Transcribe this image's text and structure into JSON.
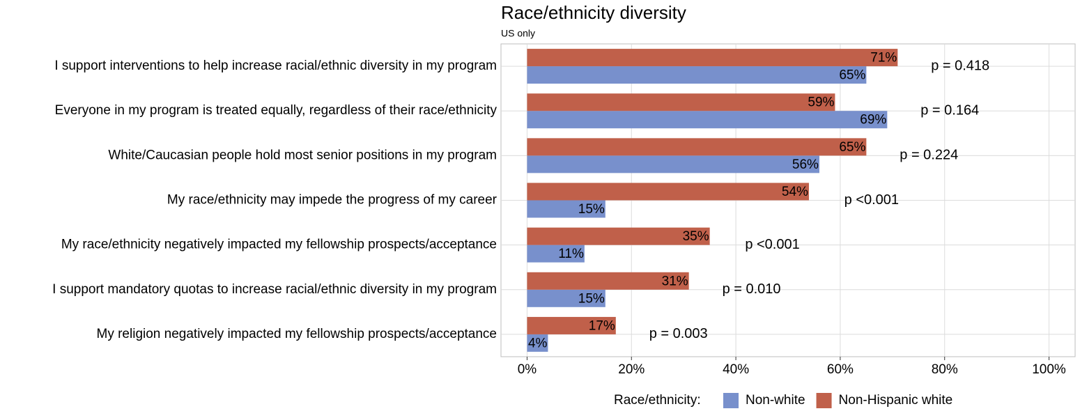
{
  "chart_data": {
    "type": "bar",
    "orientation": "horizontal",
    "title": "Race/ethnicity diversity",
    "subtitle": "US only",
    "categories": [
      "I support interventions to help increase racial/ethnic diversity in my program",
      "Everyone in my program is treated equally, regardless of their race/ethnicity",
      "White/Caucasian people hold most senior positions in my program",
      "My race/ethnicity may impede the progress of my career",
      "My race/ethnicity negatively impacted my fellowship prospects/acceptance",
      "I support mandatory quotas to increase racial/ethnic diversity in my program",
      "My religion negatively impacted my fellowship prospects/acceptance"
    ],
    "series": [
      {
        "name": "Non-white",
        "color": "#7890cc",
        "values": [
          65,
          69,
          56,
          15,
          11,
          15,
          4
        ],
        "value_labels": [
          "65%",
          "69%",
          "56%",
          "15%",
          "11%",
          "15%",
          "4%"
        ]
      },
      {
        "name": "Non-Hispanic white",
        "color": "#c0604a",
        "values": [
          71,
          59,
          65,
          54,
          35,
          31,
          17
        ],
        "value_labels": [
          "71%",
          "59%",
          "65%",
          "54%",
          "35%",
          "31%",
          "17%"
        ]
      }
    ],
    "annotations": [
      {
        "text": "p = 0.418",
        "color": "#000000"
      },
      {
        "text": "p = 0.164",
        "color": "#000000"
      },
      {
        "text": "p = 0.224",
        "color": "#000000"
      },
      {
        "text": "p <0.001",
        "color": "#b22222"
      },
      {
        "text": "p <0.001",
        "color": "#b22222"
      },
      {
        "text": "p = 0.010",
        "color": "#b22222"
      },
      {
        "text": "p = 0.003",
        "color": "#b22222"
      }
    ],
    "xlim": [
      -5,
      105
    ],
    "xticks": [
      {
        "value": 0,
        "label": "0%"
      },
      {
        "value": 20,
        "label": "20%"
      },
      {
        "value": 40,
        "label": "40%"
      },
      {
        "value": 60,
        "label": "60%"
      },
      {
        "value": 80,
        "label": "80%"
      },
      {
        "value": 100,
        "label": "100%"
      }
    ],
    "grid": true,
    "legend_title": "Race/ethnicity:",
    "legend_position": "bottom"
  }
}
